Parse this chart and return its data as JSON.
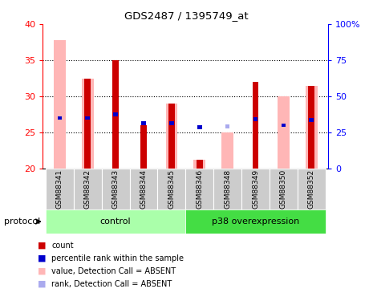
{
  "title": "GDS2487 / 1395749_at",
  "samples": [
    "GSM88341",
    "GSM88342",
    "GSM88343",
    "GSM88344",
    "GSM88345",
    "GSM88346",
    "GSM88348",
    "GSM88349",
    "GSM88350",
    "GSM88352"
  ],
  "ymin": 20,
  "ymax": 40,
  "y_ticks": [
    20,
    25,
    30,
    35,
    40
  ],
  "y2_ticks": [
    0,
    25,
    50,
    75,
    100
  ],
  "absent_value": [
    37.8,
    32.5,
    null,
    null,
    29.0,
    21.2,
    25.0,
    null,
    30.0,
    31.5
  ],
  "count_value": [
    null,
    32.5,
    35.0,
    26.0,
    29.0,
    21.2,
    null,
    32.0,
    null,
    31.5
  ],
  "percentile_rank": [
    27.0,
    27.0,
    27.5,
    26.3,
    26.3,
    25.7,
    null,
    26.8,
    26.0,
    26.7
  ],
  "absent_percentile_rank": [
    null,
    null,
    null,
    null,
    null,
    null,
    25.8,
    null,
    null,
    null
  ],
  "colors": {
    "count": "#CC0000",
    "percentile_rank": "#0000CC",
    "absent_value": "#FFB6B6",
    "absent_rank": "#AAAAEE"
  },
  "grid_lines": [
    25,
    30,
    35
  ],
  "ctrl_color": "#AAFFAA",
  "p38_color": "#44DD44",
  "label_bg": "#CCCCCC"
}
